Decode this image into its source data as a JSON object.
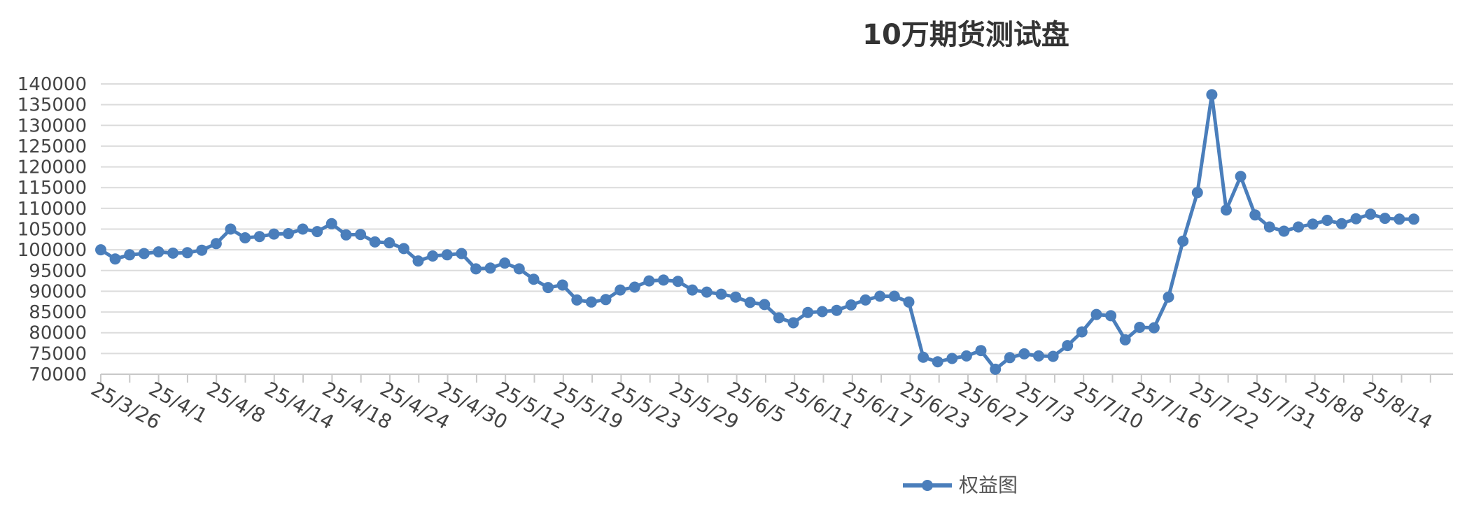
{
  "chart_data": {
    "type": "line",
    "title": "10万期货测试盘",
    "xlabel": "",
    "ylabel": "",
    "ylim": [
      70000,
      140000
    ],
    "ytick_step": 5000,
    "grid": true,
    "legend_position": "bottom",
    "color": "#4a7ebb",
    "x_tick_labels": [
      "25/3/26",
      "25/4/1",
      "25/4/8",
      "25/4/14",
      "25/4/18",
      "25/4/24",
      "25/4/30",
      "25/5/12",
      "25/5/19",
      "25/5/23",
      "25/5/29",
      "25/6/5",
      "25/6/11",
      "25/6/17",
      "25/6/23",
      "25/6/27",
      "25/7/3",
      "25/7/10",
      "25/7/16",
      "25/7/22",
      "25/7/31",
      "25/8/8",
      "25/8/14"
    ],
    "series": [
      {
        "name": "权益图",
        "values": [
          100000,
          97800,
          98800,
          99100,
          99500,
          99200,
          99300,
          99900,
          101500,
          105000,
          102900,
          103200,
          103800,
          103900,
          105000,
          104400,
          106300,
          103600,
          103700,
          101900,
          101700,
          100300,
          97300,
          98500,
          98800,
          99100,
          95400,
          95600,
          96800,
          95400,
          92900,
          90900,
          91500,
          87900,
          87400,
          88000,
          90300,
          91000,
          92500,
          92700,
          92400,
          90300,
          89800,
          89300,
          88600,
          87300,
          86800,
          83600,
          82400,
          84900,
          85100,
          85400,
          86700,
          87900,
          88800,
          88800,
          87400,
          74100,
          73000,
          73800,
          74400,
          75700,
          71200,
          74000,
          74900,
          74400,
          74300,
          76900,
          80200,
          84400,
          84100,
          78300,
          81300,
          81200,
          88600,
          102100,
          113800,
          137400,
          109600,
          117700,
          108400,
          105500,
          104500,
          105500,
          106200,
          107100,
          106300,
          107500,
          108600,
          107600,
          107400,
          107400
        ]
      }
    ]
  }
}
